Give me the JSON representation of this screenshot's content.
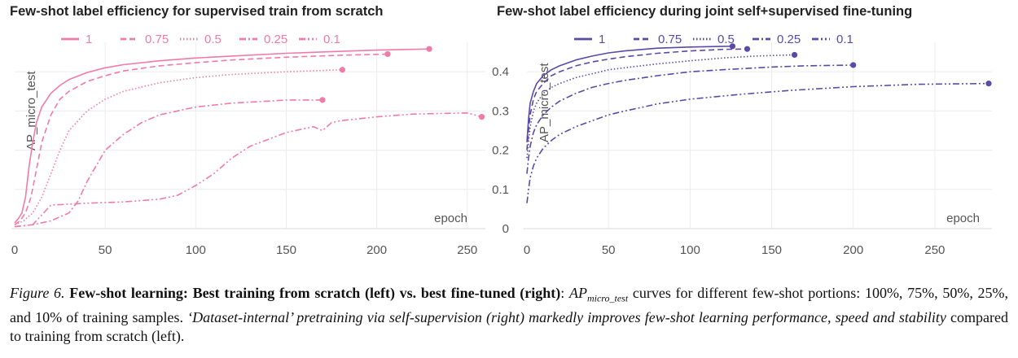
{
  "chart_data": [
    {
      "type": "line",
      "title": "Few-shot label efficiency for supervised train from scratch",
      "xlabel": "epoch",
      "ylabel": "AP_micro_test",
      "xlim": [
        0,
        260
      ],
      "ylim": [
        0,
        0.475
      ],
      "xticks": [
        0,
        50,
        100,
        150,
        200,
        250
      ],
      "yticks": [],
      "grid": true,
      "legend_position": "top",
      "color": "#f07aa8",
      "series": [
        {
          "name": "1",
          "dash": "solid",
          "end_marker": true,
          "x": [
            0,
            2,
            4,
            6,
            8,
            10,
            12,
            15,
            20,
            25,
            30,
            40,
            50,
            60,
            80,
            100,
            120,
            150,
            180,
            200,
            229
          ],
          "y": [
            0.015,
            0.025,
            0.04,
            0.08,
            0.16,
            0.22,
            0.27,
            0.31,
            0.345,
            0.365,
            0.38,
            0.398,
            0.41,
            0.418,
            0.428,
            0.435,
            0.44,
            0.447,
            0.452,
            0.455,
            0.458
          ]
        },
        {
          "name": "0.75",
          "dash": "dashed",
          "end_marker": true,
          "x": [
            0,
            3,
            6,
            9,
            12,
            15,
            20,
            25,
            30,
            40,
            50,
            60,
            80,
            100,
            120,
            150,
            180,
            206
          ],
          "y": [
            0.01,
            0.02,
            0.04,
            0.08,
            0.15,
            0.22,
            0.29,
            0.33,
            0.35,
            0.375,
            0.39,
            0.402,
            0.415,
            0.423,
            0.43,
            0.437,
            0.442,
            0.445
          ]
        },
        {
          "name": "0.5",
          "dash": "dotted",
          "end_marker": true,
          "x": [
            0,
            5,
            10,
            15,
            20,
            25,
            30,
            40,
            50,
            60,
            80,
            100,
            120,
            150,
            181
          ],
          "y": [
            0.01,
            0.02,
            0.04,
            0.08,
            0.14,
            0.2,
            0.25,
            0.3,
            0.33,
            0.35,
            0.372,
            0.385,
            0.393,
            0.4,
            0.405
          ]
        },
        {
          "name": "0.25",
          "dash": "dashdot",
          "end_marker": true,
          "x": [
            0,
            10,
            20,
            30,
            35,
            40,
            50,
            60,
            70,
            80,
            100,
            120,
            140,
            150,
            170
          ],
          "y": [
            0.005,
            0.01,
            0.02,
            0.04,
            0.07,
            0.12,
            0.2,
            0.24,
            0.27,
            0.29,
            0.31,
            0.32,
            0.325,
            0.328,
            0.328
          ]
        },
        {
          "name": "0.1",
          "dash": "dashdotdot",
          "end_marker": true,
          "x": [
            0,
            10,
            20,
            40,
            60,
            80,
            90,
            100,
            110,
            120,
            130,
            150,
            165,
            170,
            175,
            180,
            200,
            220,
            250,
            258
          ],
          "y": [
            0.005,
            0.01,
            0.06,
            0.065,
            0.068,
            0.075,
            0.085,
            0.11,
            0.14,
            0.18,
            0.21,
            0.245,
            0.26,
            0.25,
            0.27,
            0.275,
            0.285,
            0.292,
            0.295,
            0.285
          ]
        }
      ]
    },
    {
      "type": "line",
      "title": "Few-shot label efficiency during joint self+supervised fine-tuning",
      "xlabel": "epoch",
      "ylabel": "AP_micro_test",
      "xlim": [
        0,
        285
      ],
      "ylim": [
        0,
        0.475
      ],
      "xticks": [
        0,
        50,
        100,
        150,
        200,
        250
      ],
      "yticks": [
        0,
        0.1,
        0.2,
        0.3,
        0.4
      ],
      "grid": true,
      "legend_position": "top",
      "color": "#5b4aa5",
      "series": [
        {
          "name": "1",
          "dash": "solid",
          "end_marker": true,
          "x": [
            0,
            1,
            2,
            4,
            6,
            10,
            15,
            20,
            30,
            40,
            50,
            60,
            80,
            100,
            126
          ],
          "y": [
            0.22,
            0.28,
            0.32,
            0.35,
            0.37,
            0.39,
            0.405,
            0.415,
            0.43,
            0.44,
            0.448,
            0.453,
            0.46,
            0.463,
            0.465
          ]
        },
        {
          "name": "0.75",
          "dash": "dashed",
          "end_marker": true,
          "x": [
            0,
            1,
            2,
            4,
            6,
            10,
            15,
            20,
            30,
            40,
            50,
            60,
            80,
            100,
            120,
            135
          ],
          "y": [
            0.2,
            0.25,
            0.29,
            0.33,
            0.35,
            0.37,
            0.39,
            0.4,
            0.415,
            0.425,
            0.432,
            0.438,
            0.447,
            0.453,
            0.457,
            0.458
          ]
        },
        {
          "name": "0.5",
          "dash": "dotted",
          "end_marker": true,
          "x": [
            0,
            1,
            2,
            4,
            6,
            10,
            15,
            20,
            30,
            40,
            50,
            60,
            80,
            100,
            120,
            140,
            164
          ],
          "y": [
            0.18,
            0.22,
            0.26,
            0.3,
            0.32,
            0.345,
            0.36,
            0.37,
            0.385,
            0.395,
            0.405,
            0.41,
            0.42,
            0.428,
            0.435,
            0.44,
            0.443
          ]
        },
        {
          "name": "0.25",
          "dash": "dashdot",
          "end_marker": true,
          "x": [
            0,
            1,
            2,
            4,
            6,
            10,
            15,
            20,
            30,
            40,
            50,
            60,
            80,
            100,
            120,
            150,
            170,
            200
          ],
          "y": [
            0.14,
            0.18,
            0.21,
            0.245,
            0.265,
            0.29,
            0.31,
            0.325,
            0.345,
            0.36,
            0.37,
            0.378,
            0.39,
            0.4,
            0.405,
            0.412,
            0.415,
            0.417
          ]
        },
        {
          "name": "0.1",
          "dash": "dashdotdot",
          "end_marker": true,
          "x": [
            0,
            1,
            2,
            4,
            6,
            10,
            15,
            20,
            30,
            40,
            50,
            60,
            80,
            100,
            130,
            160,
            200,
            240,
            283
          ],
          "y": [
            0.065,
            0.1,
            0.13,
            0.16,
            0.18,
            0.205,
            0.225,
            0.24,
            0.26,
            0.275,
            0.29,
            0.3,
            0.318,
            0.33,
            0.342,
            0.352,
            0.362,
            0.368,
            0.37
          ]
        }
      ]
    }
  ],
  "caption": {
    "figure_label": "Figure 6.",
    "bold_title": "Few-shot learning: Best training from scratch (left) vs. best fine-tuned (right)",
    "math_main": "AP",
    "math_sub": "micro_test",
    "text_1": " curves for different few-shot portions: 100%, 75%, 50%, 25%, and 10% of training samples. ",
    "italic_text": "‘Dataset-internal’ pretraining via self-supervision (right) markedly improves few-shot learning performance, speed and stability",
    "text_2": " compared to training from scratch (left)."
  }
}
